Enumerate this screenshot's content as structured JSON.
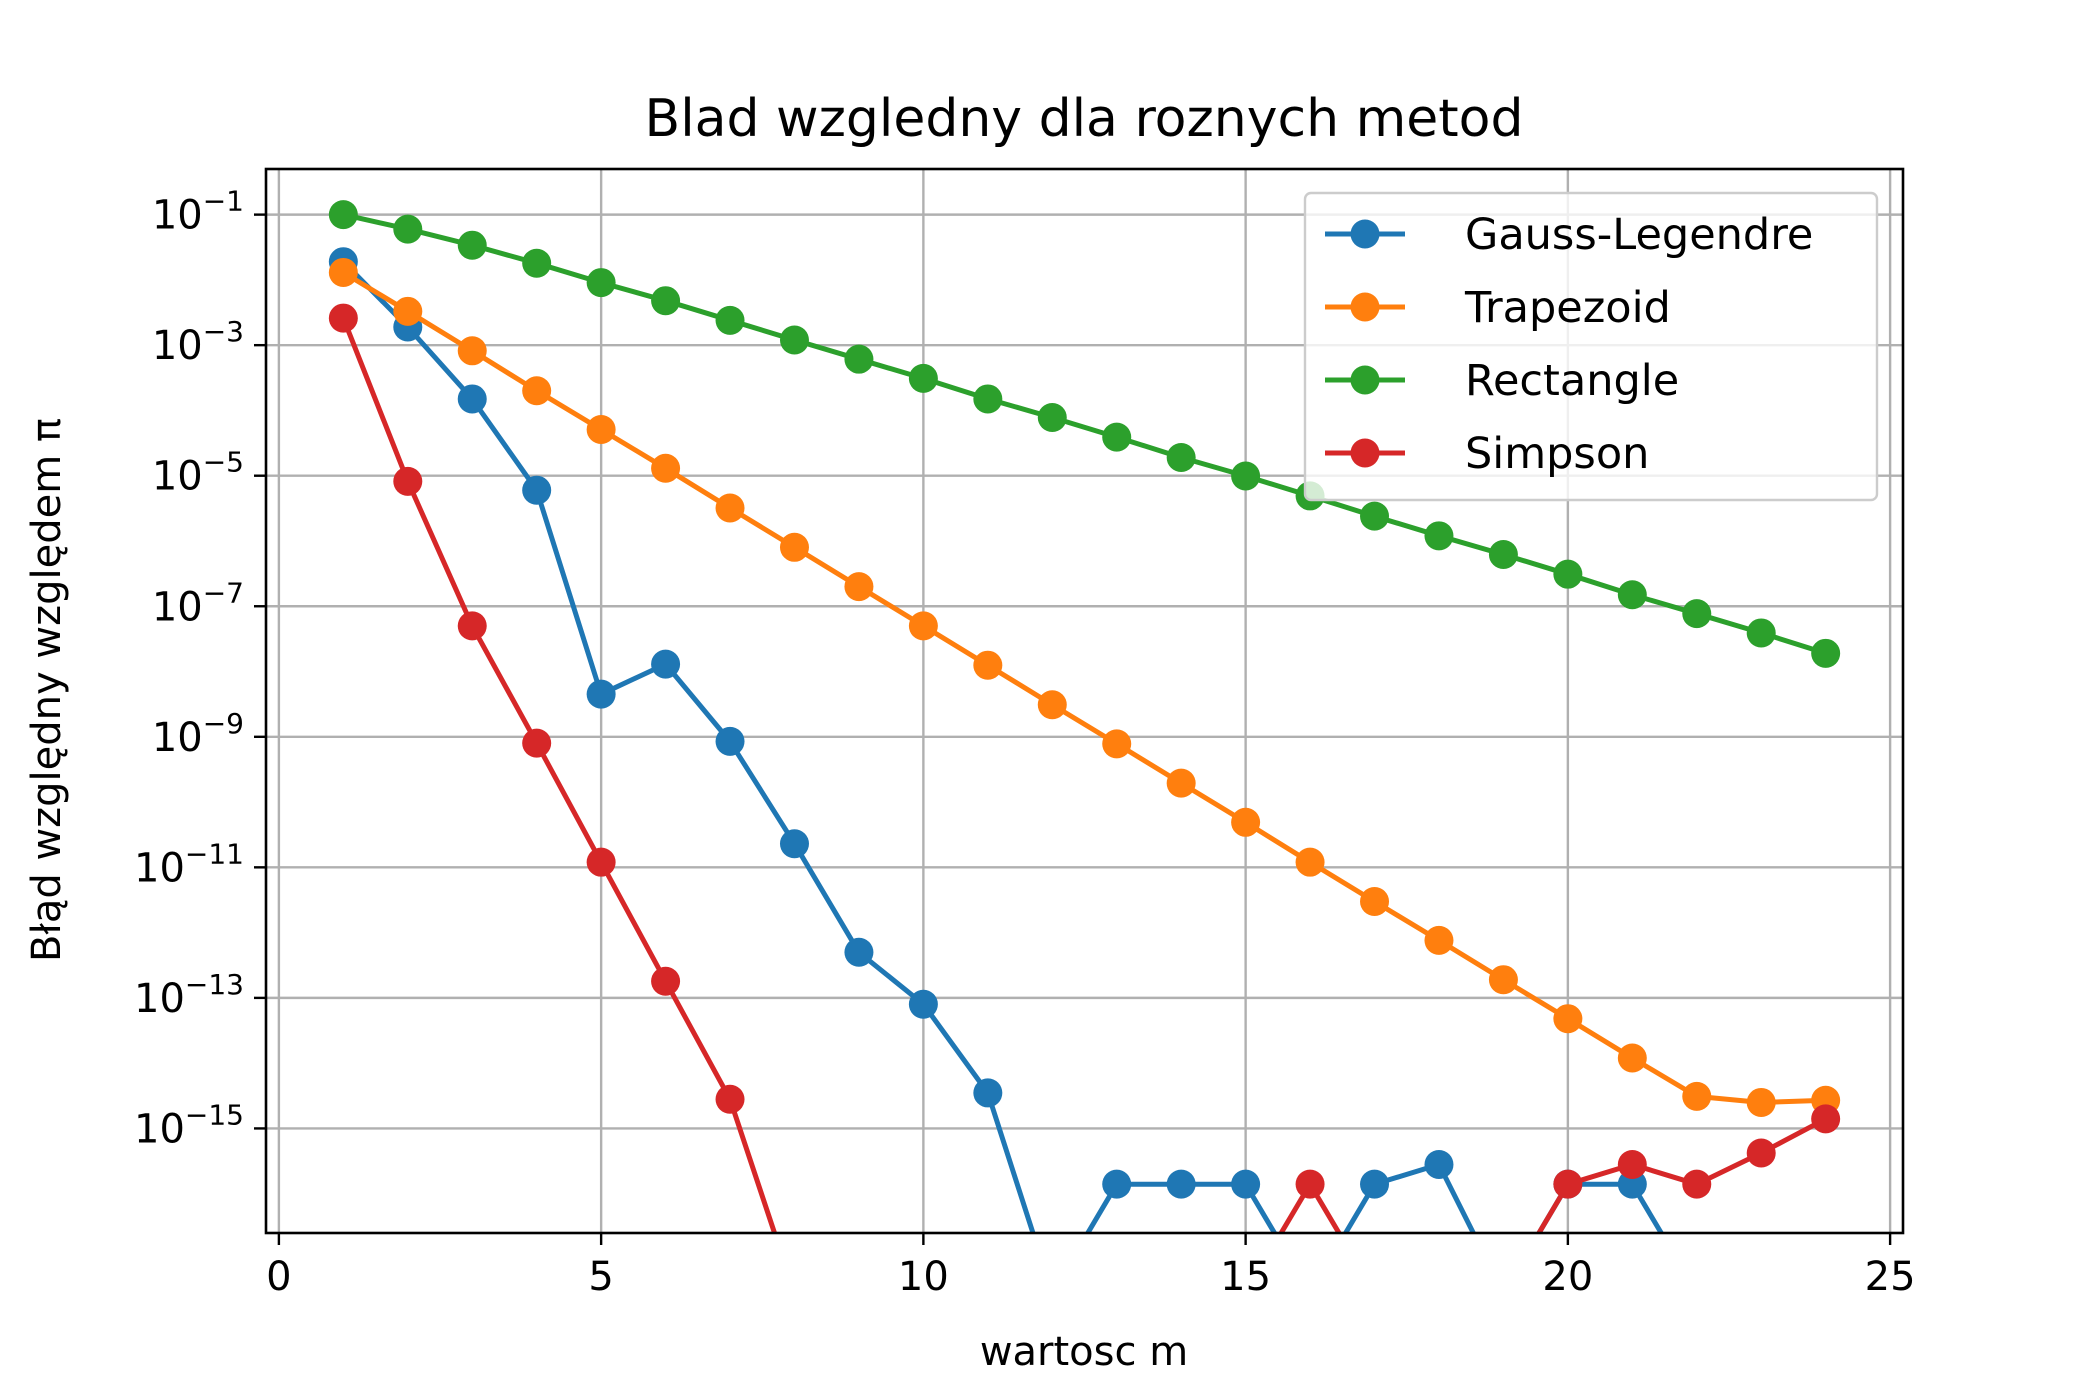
{
  "chart_data": {
    "type": "line",
    "title": "Blad wzgledny dla roznych metod",
    "xlabel": "wartosc m",
    "ylabel": "Błąd względny względem π",
    "xlim": [
      -0.2,
      25.2
    ],
    "xticks": [
      0,
      5,
      10,
      15,
      20,
      25
    ],
    "yscale": "log",
    "ylim": [
      2.5e-17,
      0.5
    ],
    "ytick_exponents": [
      -1,
      -3,
      -5,
      -7,
      -9,
      -11,
      -13,
      -15
    ],
    "grid": true,
    "legend_position": "top-right",
    "legend_base": 1e-20,
    "x": [
      1,
      2,
      3,
      4,
      5,
      6,
      7,
      8,
      9,
      10,
      11,
      12,
      13,
      14,
      15,
      16,
      17,
      18,
      19,
      20,
      21,
      22,
      23,
      24
    ],
    "series": [
      {
        "name": "Gauss-Legendre",
        "color": "#1f77b4",
        "values": [
          0.019,
          0.0019,
          0.00015,
          6e-06,
          4.5e-09,
          1.3e-08,
          8.5e-10,
          2.3e-11,
          5e-13,
          8e-14,
          3.5e-15,
          0,
          1.4e-16,
          1.4e-16,
          1.4e-16,
          0,
          1.4e-16,
          2.8e-16,
          0,
          1.4e-16,
          1.4e-16,
          0,
          0,
          0
        ]
      },
      {
        "name": "Trapezoid",
        "color": "#ff7f0e",
        "values": [
          0.013,
          0.0033,
          0.00082,
          0.0002,
          5.1e-05,
          1.3e-05,
          3.2e-06,
          8e-07,
          2e-07,
          5e-08,
          1.25e-08,
          3.1e-09,
          7.8e-10,
          1.95e-10,
          4.9e-11,
          1.2e-11,
          3e-12,
          7.6e-13,
          1.9e-13,
          4.8e-14,
          1.2e-14,
          3.1e-15,
          2.5e-15,
          2.7e-15
        ]
      },
      {
        "name": "Rectangle",
        "color": "#2ca02c",
        "values": [
          0.1,
          0.06,
          0.034,
          0.018,
          0.0091,
          0.0048,
          0.0024,
          0.0012,
          0.00061,
          0.00031,
          0.00015,
          7.8e-05,
          3.9e-05,
          1.9e-05,
          9.9e-06,
          4.9e-06,
          2.4e-06,
          1.2e-06,
          6.2e-07,
          3.1e-07,
          1.5e-07,
          7.7e-08,
          3.9e-08,
          1.9e-08
        ]
      },
      {
        "name": "Simpson",
        "color": "#d62728",
        "values": [
          0.0026,
          8.2e-06,
          5e-08,
          8e-10,
          1.2e-11,
          1.8e-13,
          2.8e-15,
          0,
          0,
          0,
          0,
          0,
          0,
          0,
          0,
          1.4e-16,
          0,
          0,
          0,
          1.4e-16,
          2.8e-16,
          1.4e-16,
          4.2e-16,
          1.4e-15
        ]
      }
    ]
  }
}
